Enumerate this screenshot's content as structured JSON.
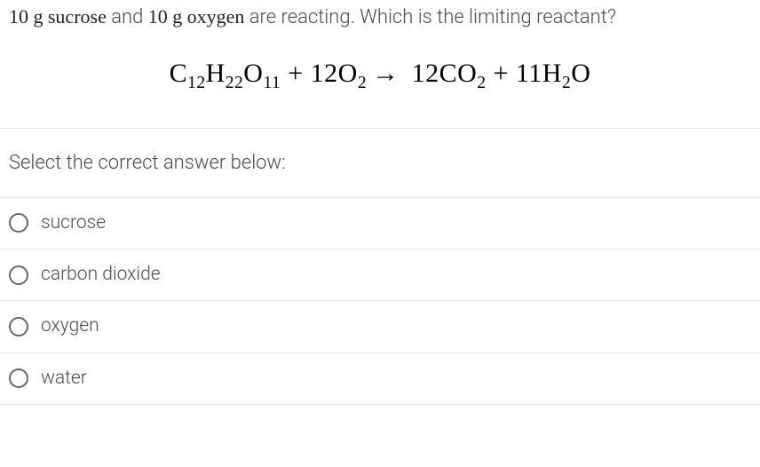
{
  "question": {
    "prefix_number": "10 g",
    "reactant1": "sucrose",
    "middle": "and",
    "prefix_number2": "10 g",
    "reactant2": "oxygen",
    "suffix": "are reacting. Which is the limiting reactant?"
  },
  "equation": {
    "parts": [
      {
        "text": "C",
        "sub": "12"
      },
      {
        "text": "H",
        "sub": "22"
      },
      {
        "text": "O",
        "sub": "11"
      },
      {
        "text": " + 12O",
        "sub": "2"
      },
      {
        "arrow": "→"
      },
      {
        "text": " 12CO",
        "sub": "2"
      },
      {
        "text": " + 11H",
        "sub": "2"
      },
      {
        "text": "O",
        "sub": ""
      }
    ],
    "colors": {
      "text": "#000000"
    },
    "fontsize": 30
  },
  "prompt": "Select the correct answer below:",
  "options": [
    {
      "label": "sucrose"
    },
    {
      "label": "carbon dioxide"
    },
    {
      "label": "oxygen"
    },
    {
      "label": "water"
    }
  ],
  "style": {
    "background": "#ffffff",
    "divider_color": "#e6e6e6",
    "radio_border": "#666666",
    "text_color": "#4a4a4a",
    "serif_color": "#222222"
  }
}
